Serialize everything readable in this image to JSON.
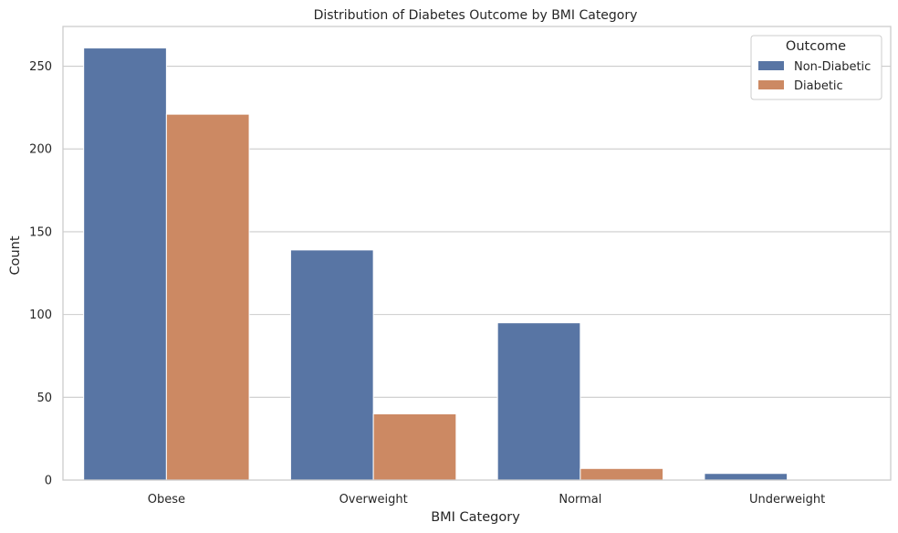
{
  "chart_data": {
    "type": "bar",
    "title": "Distribution of Diabetes Outcome by BMI Category",
    "xlabel": "BMI Category",
    "ylabel": "Count",
    "categories": [
      "Obese",
      "Overweight",
      "Normal",
      "Underweight"
    ],
    "series": [
      {
        "name": "Non-Diabetic",
        "color": "#5875a4",
        "values": [
          261,
          139,
          95,
          4
        ]
      },
      {
        "name": "Diabetic",
        "color": "#cc8963",
        "values": [
          221,
          40,
          7,
          0
        ]
      }
    ],
    "ylim": [
      0,
      274
    ],
    "yticks": [
      0,
      50,
      100,
      150,
      200,
      250
    ],
    "grid": "horizontal",
    "legend": {
      "title": "Outcome",
      "placement": "top-right"
    }
  }
}
